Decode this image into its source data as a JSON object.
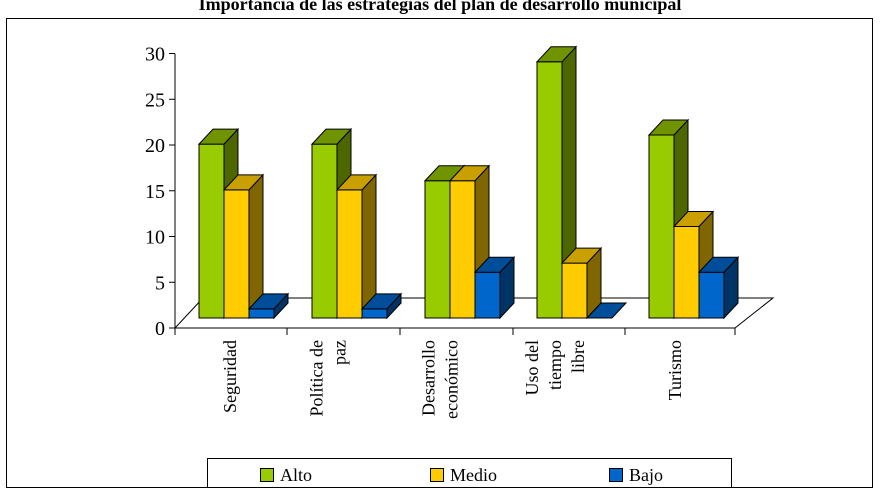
{
  "chart_data": {
    "type": "bar",
    "title": "Importancia de las estrategias del plan de desarrollo municipal",
    "categories": [
      [
        "Seguridad"
      ],
      [
        "Política de",
        "paz"
      ],
      [
        "Desarrollo",
        "económico"
      ],
      [
        "Uso del",
        "tiempo",
        "libre"
      ],
      [
        "Turismo"
      ]
    ],
    "series": [
      {
        "name": "Alto",
        "values": [
          19,
          19,
          15,
          28,
          20
        ],
        "color": "#99cc00",
        "side": "#4d6600",
        "top": "#6f9400"
      },
      {
        "name": "Medio",
        "values": [
          14,
          14,
          15,
          6,
          10
        ],
        "color": "#ffcc00",
        "side": "#806600",
        "top": "#c9a000"
      },
      {
        "name": "Bajo",
        "values": [
          1,
          1,
          5,
          0,
          5
        ],
        "color": "#0066cc",
        "side": "#003366",
        "top": "#004d99"
      }
    ],
    "yticks": [
      "0",
      "5",
      "10",
      "15",
      "20",
      "25",
      "30"
    ],
    "ylim": [
      0,
      30
    ],
    "legend_position": "bottom"
  }
}
